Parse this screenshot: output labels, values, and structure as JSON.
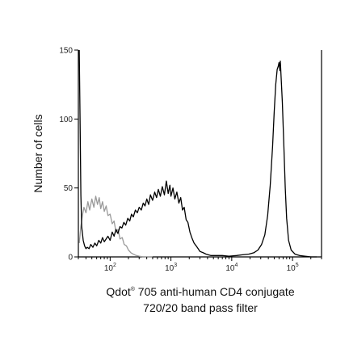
{
  "chart_data": {
    "type": "line",
    "title": "",
    "xlabel": {
      "line1_brand": "Qdot",
      "line1_mark": "®",
      "line1_rest": " 705 anti-human CD4 conjugate",
      "line2": "720/20 band pass filter"
    },
    "ylabel": "Number of cells",
    "x_scale": "log",
    "xlim": [
      30,
      300000
    ],
    "ylim": [
      0,
      150
    ],
    "y_ticks": [
      0,
      50,
      100,
      150
    ],
    "x_ticks": [
      {
        "value": 100,
        "base": "10",
        "exp": "2"
      },
      {
        "value": 1000,
        "base": "10",
        "exp": "3"
      },
      {
        "value": 10000,
        "base": "10",
        "exp": "4"
      },
      {
        "value": 100000,
        "base": "10",
        "exp": "5"
      }
    ],
    "grid": false,
    "legend": "none",
    "series": [
      {
        "color": "#000000",
        "points": [
          [
            31,
            150
          ],
          [
            32,
            100
          ],
          [
            33,
            45
          ],
          [
            34,
            22
          ],
          [
            36,
            12
          ],
          [
            38,
            8
          ],
          [
            40,
            6
          ],
          [
            42,
            7
          ],
          [
            45,
            6
          ],
          [
            48,
            9
          ],
          [
            52,
            7
          ],
          [
            56,
            10
          ],
          [
            60,
            8
          ],
          [
            65,
            12
          ],
          [
            70,
            10
          ],
          [
            75,
            14
          ],
          [
            80,
            11
          ],
          [
            86,
            13
          ],
          [
            92,
            15
          ],
          [
            100,
            12
          ],
          [
            108,
            18
          ],
          [
            116,
            15
          ],
          [
            125,
            20
          ],
          [
            134,
            17
          ],
          [
            145,
            22
          ],
          [
            156,
            21
          ],
          [
            168,
            25
          ],
          [
            180,
            23
          ],
          [
            195,
            28
          ],
          [
            210,
            26
          ],
          [
            225,
            31
          ],
          [
            240,
            29
          ],
          [
            260,
            34
          ],
          [
            280,
            32
          ],
          [
            300,
            36
          ],
          [
            325,
            34
          ],
          [
            350,
            39
          ],
          [
            375,
            37
          ],
          [
            400,
            42
          ],
          [
            430,
            38
          ],
          [
            460,
            45
          ],
          [
            500,
            41
          ],
          [
            540,
            47
          ],
          [
            580,
            43
          ],
          [
            620,
            49
          ],
          [
            670,
            44
          ],
          [
            720,
            51
          ],
          [
            780,
            45
          ],
          [
            840,
            55
          ],
          [
            900,
            46
          ],
          [
            960,
            52
          ],
          [
            1000,
            44
          ],
          [
            1080,
            50
          ],
          [
            1160,
            42
          ],
          [
            1250,
            47
          ],
          [
            1350,
            39
          ],
          [
            1450,
            43
          ],
          [
            1550,
            34
          ],
          [
            1650,
            36
          ],
          [
            1780,
            27
          ],
          [
            1900,
            25
          ],
          [
            2050,
            18
          ],
          [
            2200,
            14
          ],
          [
            2400,
            10
          ],
          [
            2600,
            8
          ],
          [
            2800,
            6
          ],
          [
            3000,
            4
          ],
          [
            3400,
            3
          ],
          [
            3800,
            2
          ],
          [
            4500,
            1
          ],
          [
            5500,
            1
          ],
          [
            7000,
            1
          ],
          [
            9000,
            0.5
          ],
          [
            12000,
            1
          ],
          [
            15000,
            1.5
          ],
          [
            19000,
            2
          ],
          [
            23000,
            3
          ],
          [
            27000,
            5
          ],
          [
            31000,
            9
          ],
          [
            35000,
            16
          ],
          [
            39000,
            30
          ],
          [
            43000,
            52
          ],
          [
            47000,
            80
          ],
          [
            50000,
            105
          ],
          [
            53000,
            125
          ],
          [
            56000,
            136
          ],
          [
            58000,
            138
          ],
          [
            60000,
            141
          ],
          [
            62000,
            135
          ],
          [
            63000,
            142
          ],
          [
            65000,
            130
          ],
          [
            68000,
            112
          ],
          [
            72000,
            80
          ],
          [
            76000,
            50
          ],
          [
            80000,
            28
          ],
          [
            86000,
            12
          ],
          [
            95000,
            5
          ],
          [
            110000,
            2
          ],
          [
            130000,
            1
          ],
          [
            160000,
            0.5
          ],
          [
            200000,
            0
          ],
          [
            250000,
            0
          ]
        ]
      },
      {
        "color": "#9a9a9a",
        "points": [
          [
            31,
            10
          ],
          [
            33,
            22
          ],
          [
            35,
            30
          ],
          [
            37,
            36
          ],
          [
            40,
            32
          ],
          [
            43,
            40
          ],
          [
            46,
            34
          ],
          [
            50,
            42
          ],
          [
            54,
            36
          ],
          [
            58,
            44
          ],
          [
            62,
            38
          ],
          [
            66,
            43
          ],
          [
            70,
            35
          ],
          [
            75,
            40
          ],
          [
            80,
            33
          ],
          [
            86,
            37
          ],
          [
            92,
            30
          ],
          [
            100,
            31
          ],
          [
            108,
            24
          ],
          [
            116,
            26
          ],
          [
            125,
            18
          ],
          [
            135,
            20
          ],
          [
            145,
            13
          ],
          [
            158,
            14
          ],
          [
            170,
            9
          ],
          [
            185,
            8
          ],
          [
            200,
            5
          ],
          [
            220,
            3
          ],
          [
            240,
            2
          ],
          [
            270,
            1
          ],
          [
            300,
            0.5
          ],
          [
            350,
            0
          ],
          [
            500,
            0
          ]
        ]
      }
    ]
  }
}
